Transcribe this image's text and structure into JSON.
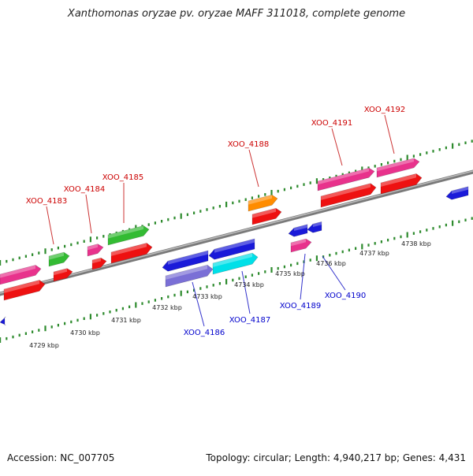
{
  "title": "Xanthomonas oryzae pv. oryzae MAFF 311018, complete genome",
  "footer": {
    "accession": "Accession: NC_007705",
    "summary": "Topology: circular; Length: 4,940,217 bp; Genes: 4,431"
  },
  "colors": {
    "background": "#ffffff",
    "upper_label": "#cc0000",
    "lower_label": "#0000cc",
    "tick": "#2e8b2e",
    "backbone": "#8c8c8c"
  },
  "scale": {
    "unit": "kbp",
    "labels": [
      "4729 kbp",
      "4730 kbp",
      "4731 kbp",
      "4732 kbp",
      "4733 kbp",
      "4734 kbp",
      "4735 kbp",
      "4736 kbp",
      "4737 kbp",
      "4738 kbp"
    ]
  },
  "genes_upper": [
    {
      "label": "XOO_4183"
    },
    {
      "label": "XOO_4184"
    },
    {
      "label": "XOO_4185"
    },
    {
      "label": "XOO_4188"
    },
    {
      "label": "XOO_4191"
    },
    {
      "label": "XOO_4192"
    }
  ],
  "genes_lower": [
    {
      "label": "XOO_4186"
    },
    {
      "label": "XOO_4187"
    },
    {
      "label": "XOO_4189"
    },
    {
      "label": "XOO_4190"
    }
  ]
}
